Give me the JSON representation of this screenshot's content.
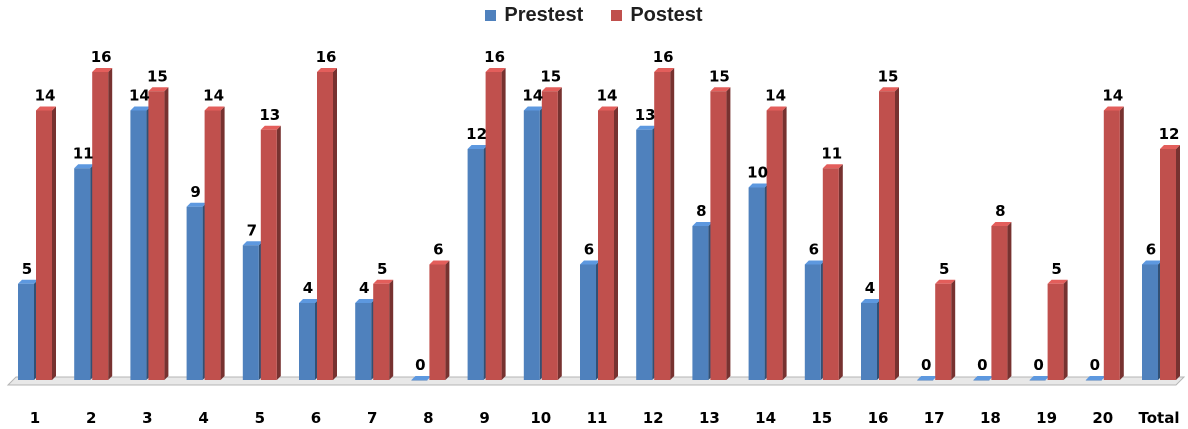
{
  "colors": {
    "prestest": "#4f81bd",
    "postest": "#c0504d",
    "floor": "#e8e8e8"
  },
  "legend": [
    {
      "label": "Prestest",
      "series": 0
    },
    {
      "label": "Postest",
      "series": 1
    }
  ],
  "chart_data": {
    "type": "bar",
    "title": "",
    "xlabel": "",
    "ylabel": "",
    "ylim": [
      0,
      16
    ],
    "grid": false,
    "legend_position": "top-center",
    "categories": [
      "1",
      "2",
      "3",
      "4",
      "5",
      "6",
      "7",
      "8",
      "9",
      "10",
      "11",
      "12",
      "13",
      "14",
      "15",
      "16",
      "17",
      "18",
      "19",
      "20",
      "Total"
    ],
    "series": [
      {
        "name": "Prestest",
        "values": [
          5,
          11,
          14,
          9,
          7,
          4,
          4,
          0,
          12,
          14,
          6,
          13,
          8,
          10,
          6,
          4,
          0,
          0,
          0,
          0,
          6
        ]
      },
      {
        "name": "Postest",
        "values": [
          14,
          16,
          15,
          14,
          13,
          16,
          5,
          6,
          16,
          15,
          14,
          16,
          15,
          14,
          11,
          15,
          5,
          8,
          5,
          14,
          12
        ]
      }
    ]
  }
}
